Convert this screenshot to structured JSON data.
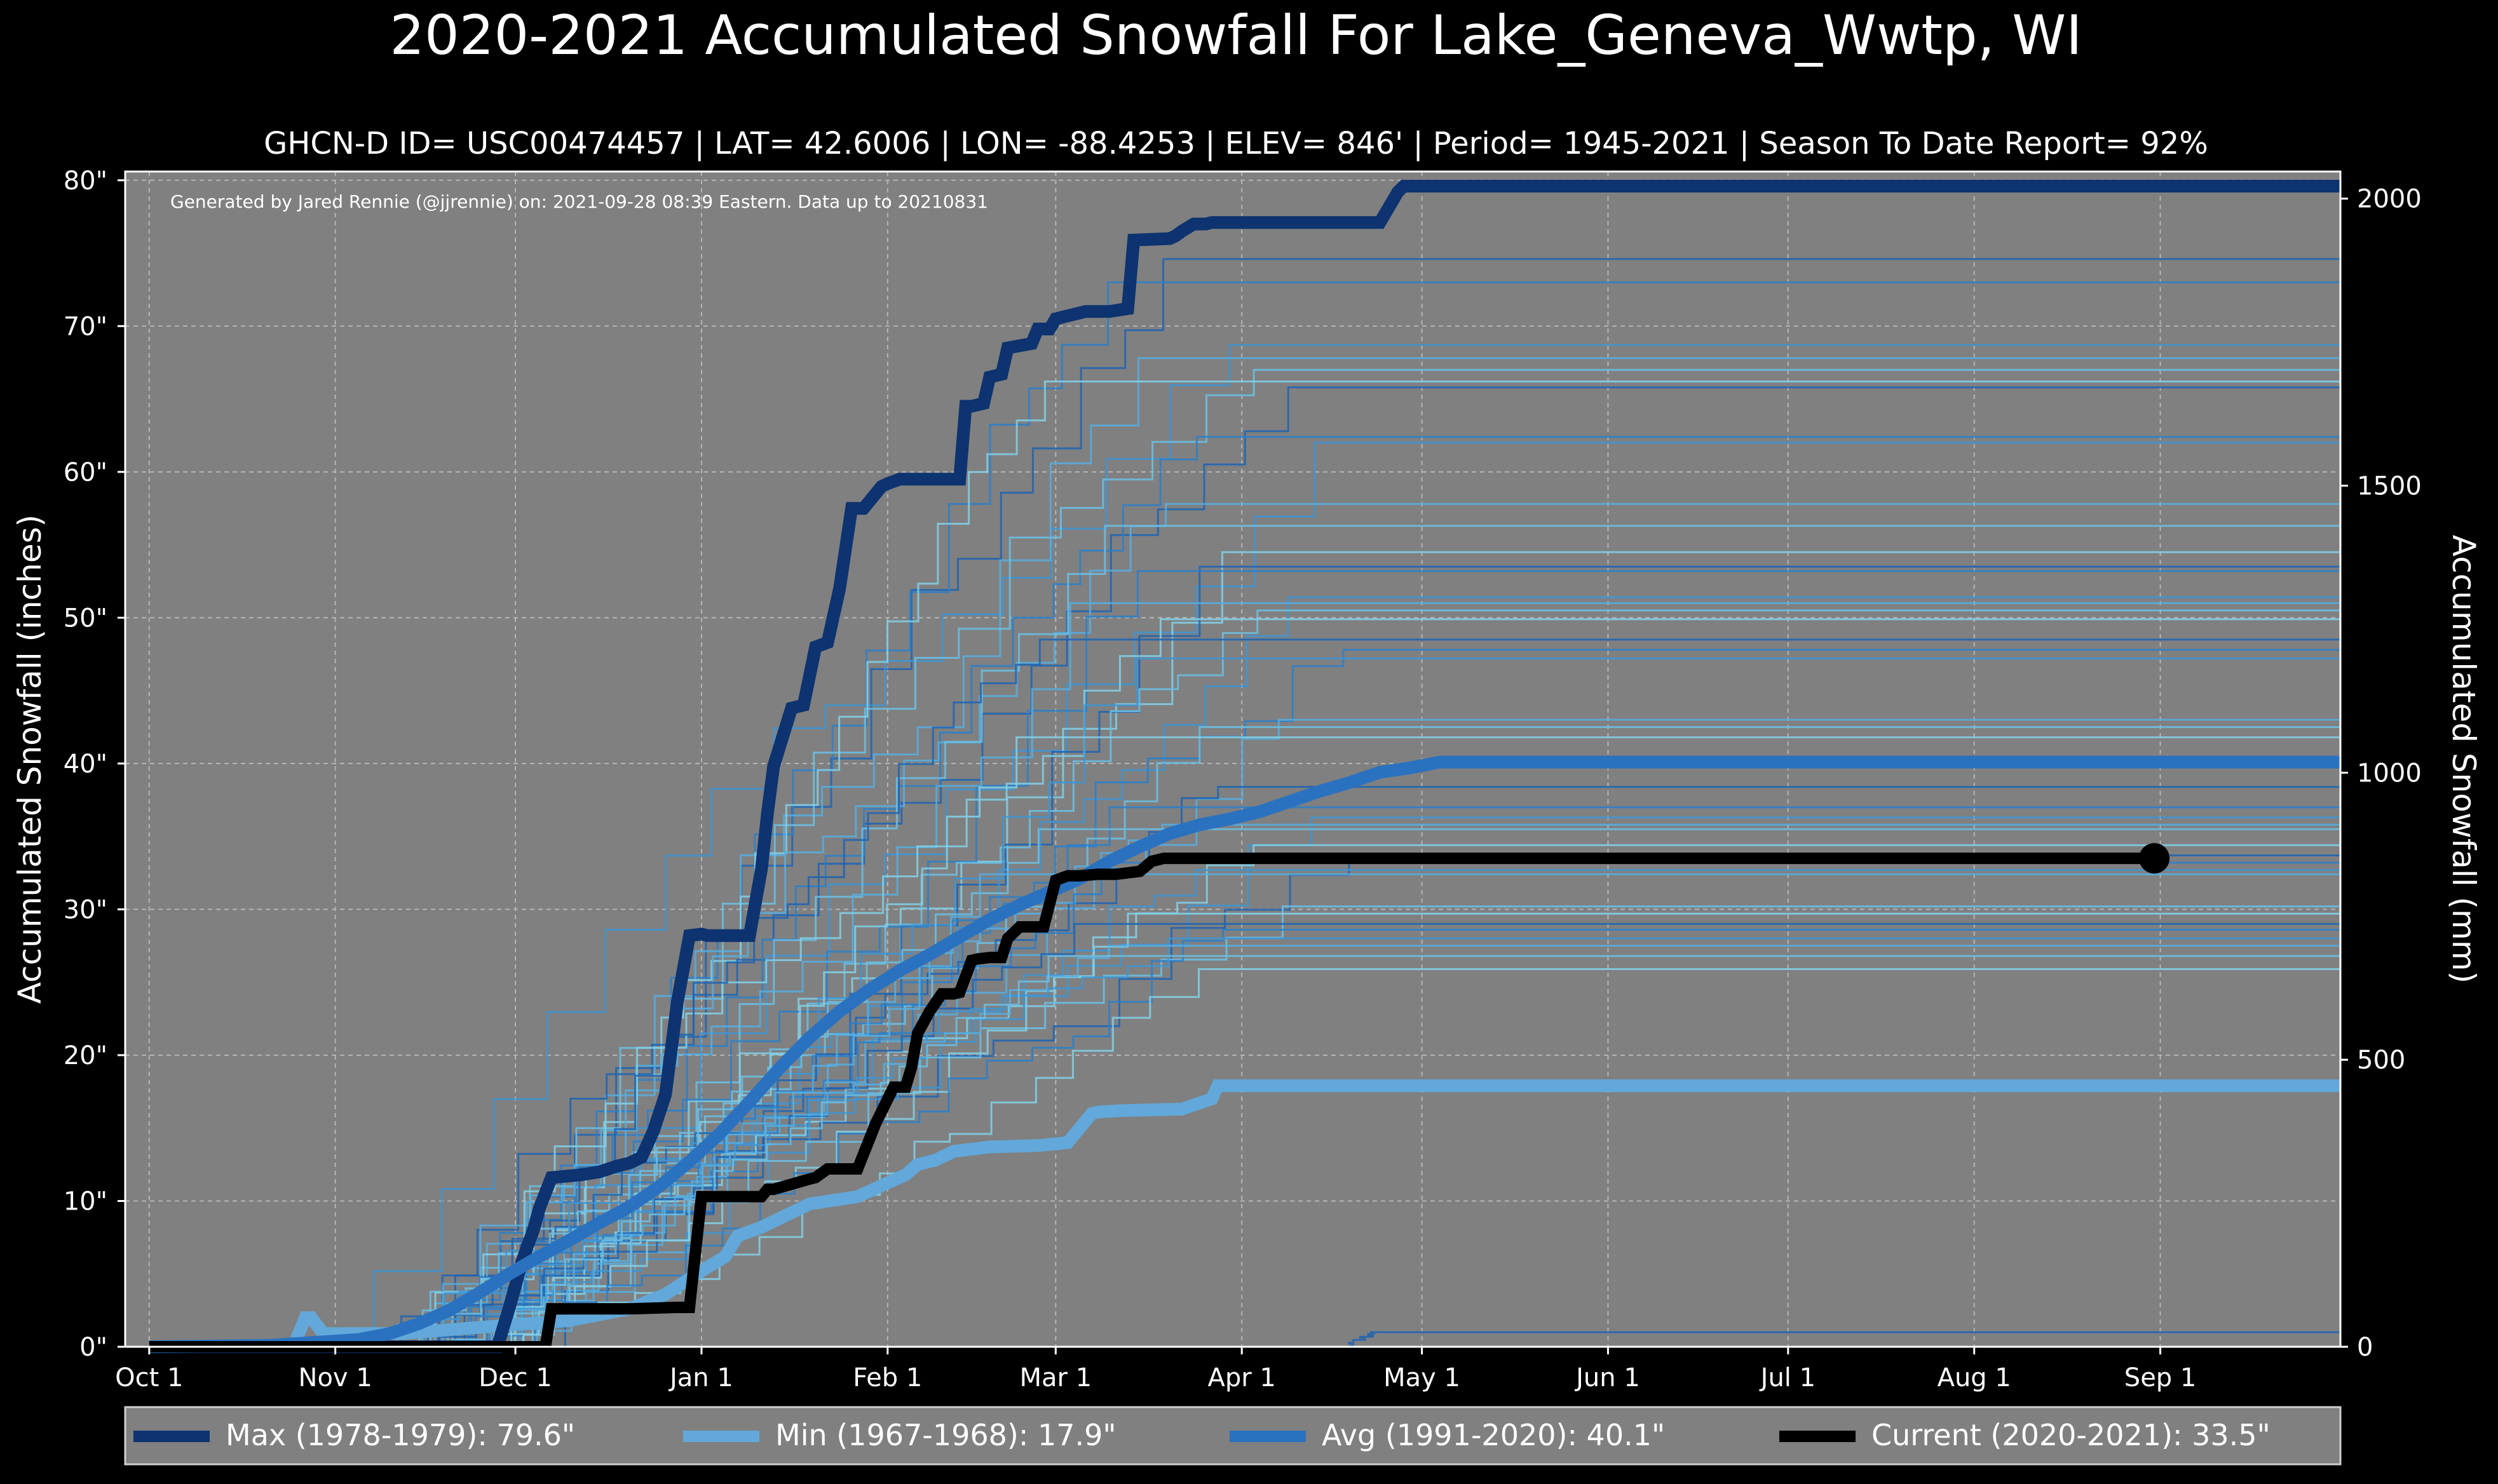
{
  "chart_data": {
    "type": "line",
    "title": "2020-2021 Accumulated Snowfall For Lake_Geneva_Wwtp, WI",
    "subtitle": "GHCN-D ID= USC00474457 | LAT= 42.6006 | LON= -88.4253 | ELEV= 846' | Period= 1945-2021 | Season To Date Report= 92%",
    "annotation": "Generated by Jared Rennie (@jjrennie) on: 2021-09-28 08:39 Eastern. Data up to 20210831",
    "ylabel": "Accumulated Snowfall (inches)",
    "ylabel_right": "Accumulated Snowfall (mm)",
    "x_unit": "day of season (0 = Oct 1)",
    "xlim": [
      -4,
      365
    ],
    "ylim": [
      0,
      80.6
    ],
    "ylim_right_mm": [
      0,
      2047.2
    ],
    "x_ticks": [
      {
        "day": 0,
        "label": "Oct 1"
      },
      {
        "day": 31,
        "label": "Nov 1"
      },
      {
        "day": 61,
        "label": "Dec 1"
      },
      {
        "day": 92,
        "label": "Jan 1"
      },
      {
        "day": 123,
        "label": "Feb 1"
      },
      {
        "day": 151,
        "label": "Mar 1"
      },
      {
        "day": 182,
        "label": "Apr 1"
      },
      {
        "day": 212,
        "label": "May 1"
      },
      {
        "day": 243,
        "label": "Jun 1"
      },
      {
        "day": 273,
        "label": "Jul 1"
      },
      {
        "day": 304,
        "label": "Aug 1"
      },
      {
        "day": 335,
        "label": "Sep 1"
      }
    ],
    "y_ticks": [
      {
        "value": 0,
        "label": "0\""
      },
      {
        "value": 10,
        "label": "10\""
      },
      {
        "value": 20,
        "label": "20\""
      },
      {
        "value": 30,
        "label": "30\""
      },
      {
        "value": 40,
        "label": "40\""
      },
      {
        "value": 50,
        "label": "50\""
      },
      {
        "value": 60,
        "label": "60\""
      },
      {
        "value": 70,
        "label": "70\""
      },
      {
        "value": 80,
        "label": "80\""
      }
    ],
    "y_ticks_right": [
      {
        "value": 0,
        "label": "0"
      },
      {
        "value": 500,
        "label": "500"
      },
      {
        "value": 1000,
        "label": "1000"
      },
      {
        "value": 1500,
        "label": "1500"
      },
      {
        "value": 2000,
        "label": "2000"
      }
    ],
    "series": [
      {
        "name": "Max (1978-1979)",
        "value_label": "79.6\"",
        "color": "#0d3370",
        "role": "max",
        "x": [
          0,
          58,
          60,
          62,
          63,
          64,
          65,
          67,
          72,
          75,
          78,
          80,
          82,
          84,
          86,
          88,
          90,
          92,
          93,
          94,
          100,
          102,
          103,
          104,
          107,
          109,
          111,
          113,
          115,
          117,
          119,
          121,
          122,
          123,
          125,
          126,
          127,
          128,
          135,
          136,
          137,
          139,
          140,
          142,
          143,
          147,
          148,
          150,
          151,
          152,
          154,
          156,
          160,
          163,
          164,
          170,
          171,
          172,
          174,
          176,
          177,
          180,
          190,
          205,
          208,
          209,
          212,
          365
        ],
        "y": [
          0,
          0,
          2.7,
          5.7,
          6.9,
          8.0,
          9.5,
          11.6,
          11.8,
          12.0,
          12.4,
          12.6,
          13.0,
          14.8,
          17.3,
          23.7,
          28.2,
          28.3,
          28.2,
          28.2,
          28.2,
          32.8,
          36.6,
          39.8,
          43.8,
          44.0,
          48.0,
          48.3,
          52.0,
          57.5,
          57.5,
          58.5,
          59.0,
          59.2,
          59.5,
          59.5,
          59.5,
          59.5,
          59.5,
          64.5,
          64.5,
          64.7,
          66.5,
          66.7,
          68.5,
          68.8,
          69.8,
          69.8,
          70.5,
          70.6,
          70.8,
          71.0,
          71.0,
          71.2,
          75.9,
          76.0,
          76.2,
          76.5,
          77.0,
          77.0,
          77.1,
          77.1,
          77.1,
          77.1,
          79.2,
          79.6,
          79.6,
          79.6
        ]
      },
      {
        "name": "Min (1967-1968)",
        "value_label": "17.9\"",
        "color": "#62a8da",
        "role": "min",
        "x": [
          0,
          24,
          26,
          27,
          29,
          35,
          42,
          54,
          70,
          80,
          86,
          92,
          96,
          98,
          102,
          110,
          118,
          126,
          128,
          131,
          134,
          140,
          148,
          153,
          155,
          157,
          158,
          162,
          172,
          177,
          178,
          186,
          365
        ],
        "y": [
          0,
          0,
          2.0,
          2.0,
          0.9,
          0.9,
          0.9,
          1.3,
          1.8,
          2.6,
          3.6,
          5.2,
          6.2,
          7.6,
          8.2,
          9.8,
          10.3,
          11.8,
          12.5,
          12.8,
          13.4,
          13.7,
          13.8,
          14.0,
          15.0,
          16.0,
          16.1,
          16.2,
          16.3,
          17.0,
          17.9,
          17.9,
          17.9
        ]
      },
      {
        "name": "Avg (1991-2020)",
        "value_label": "40.1\"",
        "color": "#2a72c0",
        "role": "avg",
        "x": [
          0,
          20,
          35,
          40,
          45,
          50,
          55,
          60,
          65,
          70,
          75,
          80,
          85,
          90,
          95,
          100,
          105,
          110,
          115,
          120,
          125,
          130,
          135,
          140,
          145,
          150,
          155,
          160,
          165,
          170,
          175,
          180,
          185,
          190,
          195,
          200,
          205,
          210,
          215,
          365
        ],
        "y": [
          0,
          0.1,
          0.5,
          0.9,
          1.6,
          2.5,
          3.7,
          5.0,
          6.2,
          7.3,
          8.5,
          9.6,
          11.0,
          12.7,
          14.6,
          16.8,
          19.1,
          21.2,
          23.0,
          24.5,
          25.8,
          26.9,
          28.1,
          29.3,
          30.3,
          31.2,
          32.1,
          33.3,
          34.3,
          35.2,
          35.8,
          36.2,
          36.7,
          37.4,
          38.1,
          38.7,
          39.4,
          39.7,
          40.1,
          40.1
        ]
      },
      {
        "name": "Current (2020-2021)",
        "value_label": "33.5\"",
        "color": "#000000",
        "role": "current",
        "x": [
          0,
          66,
          67,
          76,
          80,
          88,
          90,
          92,
          93,
          94,
          100,
          102,
          103,
          104,
          110,
          111,
          113,
          115,
          117,
          118,
          121,
          124,
          125,
          126,
          127,
          128,
          130,
          132,
          134,
          135,
          137,
          138,
          140,
          142,
          143,
          145,
          147,
          149,
          151,
          153,
          155,
          158,
          161,
          163,
          165,
          167,
          169,
          171,
          173,
          175,
          334
        ],
        "y": [
          0,
          0,
          2.6,
          2.6,
          2.6,
          2.7,
          2.7,
          10.3,
          10.3,
          10.3,
          10.3,
          10.3,
          10.8,
          10.8,
          11.5,
          11.6,
          12.2,
          12.2,
          12.2,
          12.2,
          15.3,
          17.8,
          17.8,
          17.8,
          19.2,
          21.5,
          23.0,
          24.2,
          24.2,
          24.3,
          26.5,
          26.6,
          26.7,
          26.7,
          28.0,
          28.8,
          28.8,
          28.8,
          32.0,
          32.3,
          32.3,
          32.4,
          32.4,
          32.5,
          32.6,
          33.3,
          33.5,
          33.5,
          33.5,
          33.5,
          33.5
        ],
        "end_marker": true
      }
    ],
    "legend": {
      "placement": "bottom",
      "entries": [
        {
          "label": "Max (1978-1979):",
          "value": "79.6\"",
          "color": "#0d3370"
        },
        {
          "label": "Min (1967-1968):",
          "value": "17.9\"",
          "color": "#62a8da"
        },
        {
          "label": "Avg (1991-2020):",
          "value": "40.1\"",
          "color": "#2a72c0"
        },
        {
          "label": "Current (2020-2021):",
          "value": "33.5\"",
          "color": "#000000"
        }
      ]
    },
    "background_series": {
      "description": "individual historical seasons 1945-2020",
      "colors": [
        "#1f64b3",
        "#2d7fc8",
        "#3e95d4",
        "#56aee0",
        "#6bc0e4",
        "#82d0e6"
      ],
      "finals": [
        74.6,
        73.0,
        68.7,
        67.8,
        67.0,
        66.2,
        65.8,
        62.4,
        62.0,
        57.8,
        56.3,
        54.5,
        53.5,
        53.2,
        51.4,
        51.0,
        50.5,
        49.9,
        48.5,
        47.8,
        47.2,
        43.0,
        42.5,
        41.8,
        38.4,
        37.0,
        36.3,
        35.8,
        35.5,
        34.4,
        33.7,
        33.2,
        32.7,
        32.4,
        30.2,
        29.7,
        29.0,
        28.6,
        28.0,
        27.5,
        26.8,
        25.9,
        1.0
      ],
      "ends": [
        170,
        160,
        180,
        165,
        185,
        150,
        190,
        175,
        195,
        170,
        160,
        180,
        175,
        165,
        190,
        155,
        185,
        170,
        150,
        200,
        165,
        190,
        175,
        145,
        180,
        160,
        195,
        170,
        150,
        185,
        200,
        160,
        175,
        140,
        190,
        165,
        155,
        180,
        170,
        160,
        150,
        175,
        205
      ],
      "starts": [
        45,
        50,
        30,
        55,
        40,
        60,
        35,
        48,
        52,
        44,
        58,
        38,
        62,
        47,
        54,
        42,
        56,
        36,
        49,
        53,
        46,
        59,
        41,
        57,
        43,
        51,
        39,
        61,
        45,
        55,
        37,
        50,
        47,
        60,
        41,
        53,
        44,
        58,
        40,
        52,
        48,
        56,
        200
      ]
    }
  }
}
